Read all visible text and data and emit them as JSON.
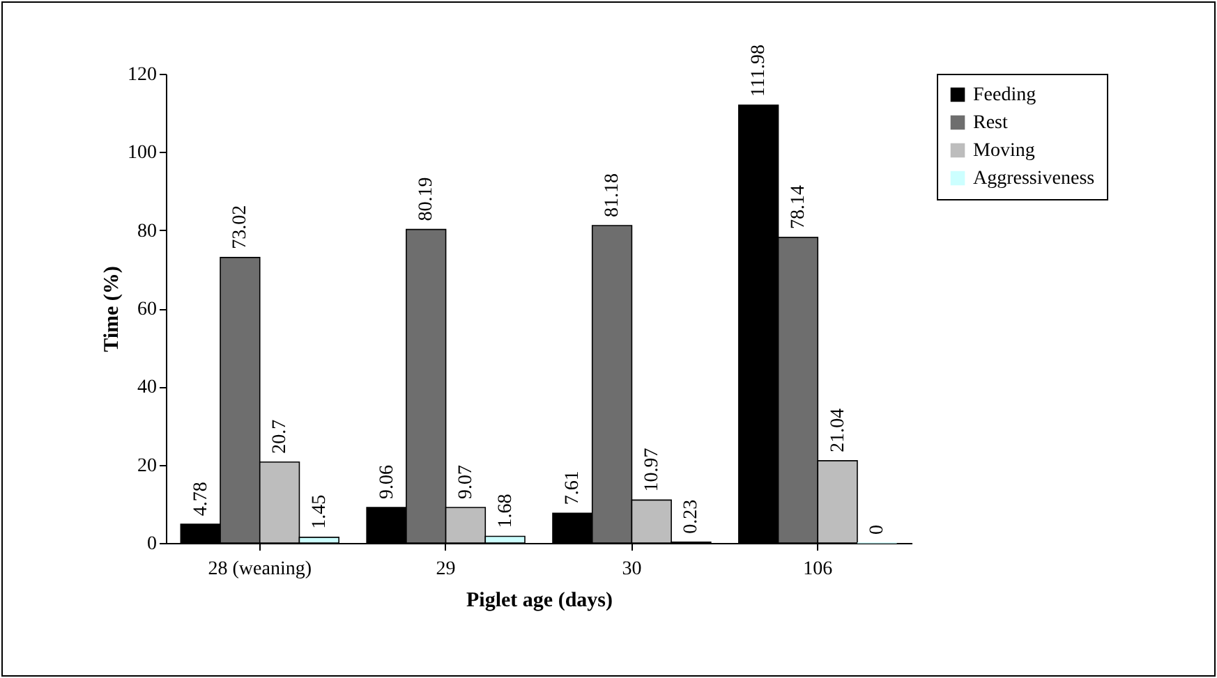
{
  "chart_data": {
    "type": "bar",
    "xlabel": "Piglet age (days)",
    "ylabel": "Time (%)",
    "categories": [
      "28 (weaning)",
      "29",
      "30",
      "106"
    ],
    "series": [
      {
        "name": "Feeding",
        "color": "#000000",
        "values": [
          4.78,
          9.06,
          7.61,
          111.98
        ]
      },
      {
        "name": "Rest",
        "color": "#6e6e6e",
        "values": [
          73.02,
          80.19,
          81.18,
          78.14
        ]
      },
      {
        "name": "Moving",
        "color": "#bdbdbd",
        "values": [
          20.7,
          9.07,
          10.97,
          21.04
        ]
      },
      {
        "name": "Aggressiveness",
        "color": "#ccffff",
        "values": [
          1.45,
          1.68,
          0.23,
          0
        ]
      }
    ],
    "ylim": [
      0,
      120
    ],
    "yticks": [
      0,
      20,
      40,
      60,
      80,
      100,
      120
    ],
    "grid": false,
    "legend": "right",
    "data_labels": true
  }
}
